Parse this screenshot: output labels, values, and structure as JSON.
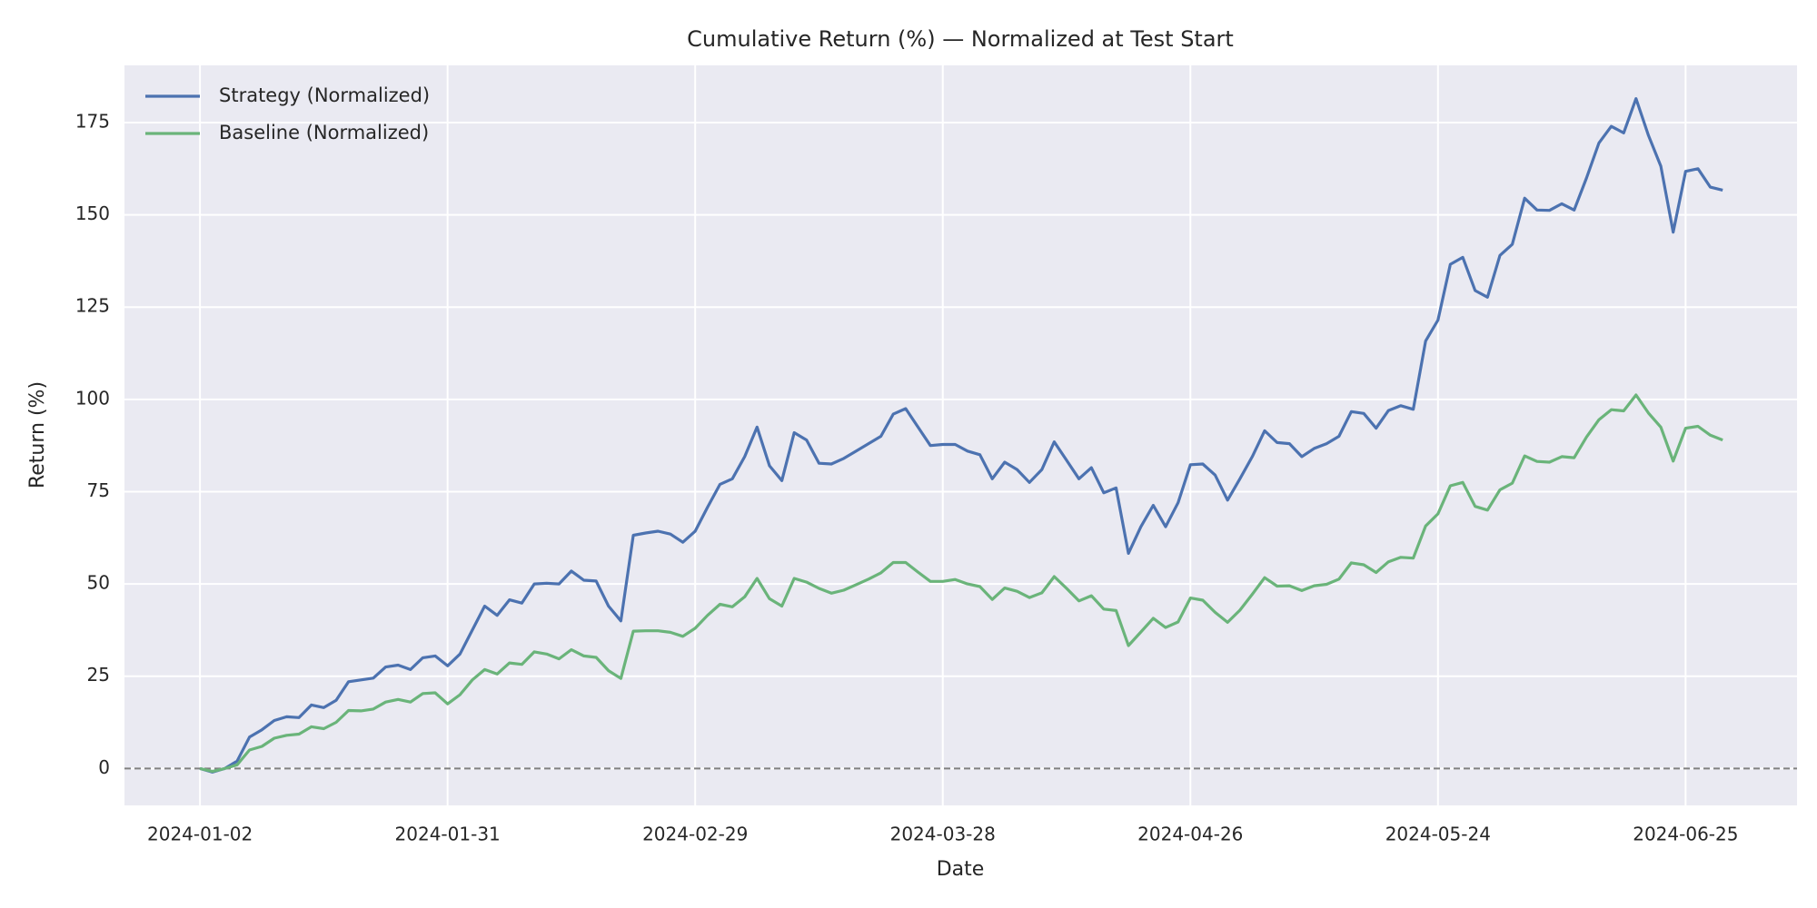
{
  "chart_data": {
    "type": "line",
    "title": "Cumulative Return (%) — Normalized at Test Start",
    "x_label": "Date",
    "y_label": "Return (%)",
    "categories": [
      "2024-01-02",
      null,
      null,
      null,
      null,
      null,
      null,
      null,
      null,
      null,
      null,
      null,
      null,
      null,
      null,
      null,
      null,
      null,
      null,
      null,
      "2024-01-31",
      null,
      null,
      null,
      null,
      null,
      null,
      null,
      null,
      null,
      null,
      null,
      null,
      null,
      null,
      null,
      null,
      null,
      null,
      null,
      "2024-02-29",
      null,
      null,
      null,
      null,
      null,
      null,
      null,
      null,
      null,
      null,
      null,
      null,
      null,
      null,
      null,
      null,
      null,
      null,
      null,
      "2024-03-28",
      null,
      null,
      null,
      null,
      null,
      null,
      null,
      null,
      null,
      null,
      null,
      null,
      null,
      null,
      null,
      null,
      null,
      null,
      null,
      "2024-04-26",
      null,
      null,
      null,
      null,
      null,
      null,
      null,
      null,
      null,
      null,
      null,
      null,
      null,
      null,
      null,
      null,
      null,
      null,
      null,
      "2024-05-24",
      null,
      null,
      null,
      null,
      null,
      null,
      null,
      null,
      null,
      null,
      null,
      null,
      null,
      null,
      null,
      null,
      null,
      null,
      null,
      "2024-06-25",
      null,
      null,
      null
    ],
    "series": [
      {
        "name": "Strategy (Normalized)",
        "color": "#4c72b0",
        "values": [
          0,
          -1,
          0,
          2,
          8.5,
          10.5,
          13,
          14,
          13.8,
          17.2,
          16.5,
          18.5,
          23.5,
          24,
          24.5,
          27.5,
          28,
          26.8,
          30,
          30.5,
          27.8,
          31,
          37.5,
          44,
          41.5,
          45.7,
          44.8,
          50,
          50.2,
          50,
          53.5,
          51,
          50.8,
          44,
          40,
          63.2,
          63.8,
          64.3,
          63.5,
          61.3,
          64.3,
          70.8,
          77,
          78.5,
          84.5,
          92.5,
          82,
          78,
          91,
          89,
          82.7,
          82.5,
          84,
          86,
          88,
          90,
          96,
          97.5,
          92.5,
          87.5,
          87.8,
          87.8,
          86,
          85,
          78.5,
          83,
          81,
          77.5,
          81,
          88.5,
          83.5,
          78.5,
          81.5,
          74.7,
          76,
          58.3,
          65.5,
          71.3,
          65.5,
          72,
          82.3,
          82.5,
          79.5,
          72.7,
          78.5,
          84.5,
          91.5,
          88.3,
          88,
          84.5,
          86.7,
          88,
          90,
          96.7,
          96.2,
          92.2,
          97,
          98.3,
          97.3,
          115.8,
          121.5,
          136.6,
          138.5,
          129.5,
          127.7,
          139,
          142,
          154.5,
          151.3,
          151.2,
          153,
          151.3,
          160,
          169.5,
          174,
          172.2,
          181.5,
          171.5,
          163.2,
          145.3,
          161.8,
          162.5,
          157.5,
          156.7
        ]
      },
      {
        "name": "Baseline (Normalized)",
        "color": "#6ab47a",
        "values": [
          0,
          -0.8,
          0,
          1,
          5,
          6,
          8.2,
          9,
          9.3,
          11.3,
          10.8,
          12.5,
          15.7,
          15.6,
          16.1,
          18,
          18.7,
          18,
          20.3,
          20.5,
          17.5,
          20,
          24,
          26.8,
          25.6,
          28.6,
          28.2,
          31.6,
          31,
          29.7,
          32.2,
          30.5,
          30.1,
          26.5,
          24.4,
          37.2,
          37.3,
          37.3,
          36.9,
          35.8,
          38,
          41.5,
          44.5,
          43.8,
          46.5,
          51.5,
          46,
          44,
          51.5,
          50.5,
          48.8,
          47.5,
          48.3,
          49.8,
          51.3,
          53,
          55.8,
          55.8,
          53.2,
          50.7,
          50.7,
          51.2,
          50,
          49.3,
          45.8,
          48.9,
          48,
          46.3,
          47.6,
          52,
          48.8,
          45.4,
          46.8,
          43.2,
          42.8,
          33.3,
          37,
          40.7,
          38.2,
          39.7,
          46.2,
          45.6,
          42.3,
          39.6,
          42.9,
          47.2,
          51.7,
          49.4,
          49.5,
          48.2,
          49.5,
          49.9,
          51.3,
          55.7,
          55.2,
          53.1,
          56,
          57.2,
          57,
          65.7,
          69,
          76.6,
          77.5,
          71,
          70,
          75.5,
          77.3,
          84.7,
          83.2,
          83,
          84.5,
          84.2,
          89.8,
          94.5,
          97.2,
          96.9,
          101.2,
          96.3,
          92.5,
          83.3,
          92.2,
          92.7,
          90.3,
          89
        ]
      }
    ],
    "ylim": [
      -10,
      190.5
    ],
    "yticks": [
      0,
      25,
      50,
      75,
      100,
      125,
      150,
      175
    ],
    "hline": 0,
    "grid": true,
    "legend": "upper left"
  }
}
